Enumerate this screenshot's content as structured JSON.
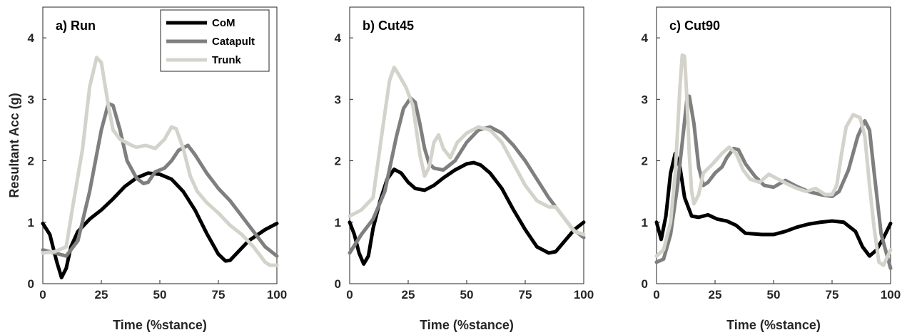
{
  "figure": {
    "ylabel": "Resultant Acc (g)",
    "xlabel": "Time (%stance)"
  },
  "legend": {
    "placement": "top-right of panel a",
    "entries": [
      {
        "label": "CoM",
        "color": "#000000"
      },
      {
        "label": "Catapult",
        "color": "#7f7f7f"
      },
      {
        "label": "Trunk",
        "color": "#d4d3cb"
      }
    ]
  },
  "chart_data": [
    {
      "type": "line",
      "title": "a) Run",
      "xlabel": "Time (%stance)",
      "ylabel": "Resultant Acc (g)",
      "xlim": [
        0,
        100
      ],
      "ylim": [
        0,
        4.5
      ],
      "xticks": [
        0,
        25,
        50,
        75,
        100
      ],
      "yticks": [
        0,
        1,
        2,
        3,
        4
      ],
      "grid": false,
      "series": [
        {
          "name": "CoM",
          "color": "#000000",
          "x": [
            0,
            3,
            6,
            8,
            10,
            12,
            15,
            20,
            25,
            30,
            35,
            40,
            45,
            50,
            55,
            60,
            65,
            70,
            75,
            78,
            80,
            83,
            88,
            95,
            100
          ],
          "y": [
            0.98,
            0.8,
            0.35,
            0.1,
            0.25,
            0.6,
            0.85,
            1.05,
            1.2,
            1.38,
            1.58,
            1.72,
            1.8,
            1.78,
            1.7,
            1.5,
            1.2,
            0.82,
            0.48,
            0.37,
            0.38,
            0.5,
            0.7,
            0.88,
            0.98
          ]
        },
        {
          "name": "Catapult",
          "color": "#7f7f7f",
          "x": [
            0,
            5,
            10,
            15,
            20,
            25,
            28,
            30,
            33,
            36,
            40,
            43,
            45,
            48,
            52,
            55,
            58,
            62,
            65,
            70,
            75,
            80,
            85,
            90,
            95,
            100
          ],
          "y": [
            0.55,
            0.5,
            0.45,
            0.7,
            1.5,
            2.5,
            2.93,
            2.9,
            2.5,
            2.0,
            1.72,
            1.63,
            1.65,
            1.82,
            1.88,
            2.0,
            2.17,
            2.25,
            2.1,
            1.8,
            1.55,
            1.35,
            1.1,
            0.85,
            0.6,
            0.45
          ]
        },
        {
          "name": "Trunk",
          "color": "#d4d3cb",
          "x": [
            0,
            5,
            10,
            13,
            17,
            20,
            23,
            25,
            28,
            30,
            33,
            38,
            40,
            44,
            48,
            52,
            55,
            57,
            60,
            63,
            66,
            70,
            75,
            80,
            85,
            90,
            95,
            97,
            100
          ],
          "y": [
            0.5,
            0.52,
            0.6,
            1.3,
            2.2,
            3.2,
            3.68,
            3.6,
            2.9,
            2.5,
            2.35,
            2.25,
            2.22,
            2.25,
            2.2,
            2.35,
            2.55,
            2.52,
            2.2,
            1.75,
            1.5,
            1.32,
            1.15,
            0.95,
            0.8,
            0.6,
            0.35,
            0.3,
            0.3
          ]
        }
      ]
    },
    {
      "type": "line",
      "title": "b) Cut45",
      "xlabel": "Time (%stance)",
      "xlim": [
        0,
        100
      ],
      "ylim": [
        0,
        4.5
      ],
      "xticks": [
        0,
        25,
        50,
        75,
        100
      ],
      "yticks": [
        0,
        1,
        2,
        3,
        4
      ],
      "grid": false,
      "series": [
        {
          "name": "CoM",
          "color": "#000000",
          "x": [
            0,
            2,
            4,
            6,
            8,
            10,
            13,
            16,
            19,
            22,
            25,
            28,
            32,
            36,
            40,
            45,
            50,
            53,
            56,
            60,
            65,
            70,
            75,
            80,
            85,
            88,
            92,
            96,
            100
          ],
          "y": [
            1.0,
            0.8,
            0.5,
            0.32,
            0.45,
            0.9,
            1.35,
            1.7,
            1.86,
            1.8,
            1.65,
            1.55,
            1.52,
            1.6,
            1.72,
            1.85,
            1.95,
            1.97,
            1.93,
            1.8,
            1.55,
            1.2,
            0.88,
            0.6,
            0.5,
            0.52,
            0.7,
            0.88,
            1.0
          ]
        },
        {
          "name": "Catapult",
          "color": "#7f7f7f",
          "x": [
            0,
            5,
            10,
            15,
            20,
            23,
            26,
            28,
            30,
            32,
            34,
            36,
            40,
            45,
            50,
            55,
            60,
            65,
            70,
            75,
            80,
            85,
            90,
            95,
            100
          ],
          "y": [
            0.5,
            0.8,
            1.05,
            1.5,
            2.4,
            2.85,
            3.02,
            2.95,
            2.6,
            2.2,
            1.95,
            1.88,
            1.85,
            2.0,
            2.3,
            2.5,
            2.55,
            2.45,
            2.25,
            2.0,
            1.7,
            1.4,
            1.15,
            0.9,
            0.75
          ]
        },
        {
          "name": "Trunk",
          "color": "#d4d3cb",
          "x": [
            0,
            5,
            10,
            14,
            17,
            19,
            21,
            24,
            27,
            30,
            32,
            34,
            36,
            38,
            40,
            43,
            46,
            50,
            55,
            60,
            65,
            70,
            75,
            80,
            85,
            88,
            92,
            96,
            100
          ],
          "y": [
            1.1,
            1.2,
            1.4,
            2.5,
            3.3,
            3.52,
            3.4,
            3.2,
            2.9,
            2.1,
            1.75,
            1.9,
            2.3,
            2.42,
            2.2,
            2.05,
            2.3,
            2.45,
            2.55,
            2.5,
            2.3,
            1.95,
            1.6,
            1.35,
            1.25,
            1.25,
            1.05,
            0.85,
            0.8
          ]
        }
      ]
    },
    {
      "type": "line",
      "title": "c) Cut90",
      "xlabel": "Time (%stance)",
      "xlim": [
        0,
        100
      ],
      "ylim": [
        0,
        4.5
      ],
      "xticks": [
        0,
        25,
        50,
        75,
        100
      ],
      "yticks": [
        0,
        1,
        2,
        3,
        4
      ],
      "grid": false,
      "series": [
        {
          "name": "CoM",
          "color": "#000000",
          "x": [
            0,
            2,
            4,
            6,
            8,
            10,
            12,
            15,
            18,
            22,
            26,
            30,
            34,
            38,
            45,
            50,
            55,
            60,
            65,
            70,
            75,
            80,
            85,
            88,
            91,
            94,
            97,
            100
          ],
          "y": [
            1.0,
            0.72,
            1.1,
            1.8,
            2.12,
            1.9,
            1.4,
            1.1,
            1.08,
            1.12,
            1.05,
            1.02,
            0.95,
            0.82,
            0.8,
            0.8,
            0.85,
            0.92,
            0.97,
            1.0,
            1.02,
            1.0,
            0.85,
            0.6,
            0.45,
            0.55,
            0.75,
            0.98
          ]
        },
        {
          "name": "Catapult",
          "color": "#7f7f7f",
          "x": [
            0,
            3,
            6,
            9,
            11,
            13,
            14,
            16,
            18,
            20,
            22,
            25,
            28,
            30,
            33,
            35,
            38,
            42,
            46,
            50,
            55,
            60,
            65,
            70,
            75,
            78,
            82,
            86,
            89,
            91,
            93,
            96,
            100
          ],
          "y": [
            0.35,
            0.4,
            0.8,
            1.6,
            2.3,
            3.0,
            3.05,
            2.6,
            1.9,
            1.6,
            1.65,
            1.8,
            1.9,
            2.05,
            2.2,
            2.18,
            1.95,
            1.75,
            1.6,
            1.57,
            1.68,
            1.58,
            1.5,
            1.45,
            1.42,
            1.5,
            1.85,
            2.4,
            2.65,
            2.5,
            1.8,
            0.8,
            0.25
          ]
        },
        {
          "name": "Trunk",
          "color": "#d4d3cb",
          "x": [
            0,
            3,
            6,
            8,
            10,
            11,
            12,
            13,
            14,
            15,
            16,
            18,
            20,
            24,
            28,
            31,
            34,
            37,
            40,
            44,
            48,
            52,
            56,
            60,
            64,
            68,
            72,
            75,
            77,
            79,
            81,
            84,
            87,
            89,
            91,
            93,
            95,
            97,
            100
          ],
          "y": [
            0.45,
            0.55,
            1.0,
            1.8,
            3.2,
            3.72,
            3.7,
            3.0,
            2.1,
            1.5,
            1.3,
            1.45,
            1.8,
            1.95,
            2.12,
            2.22,
            2.12,
            1.85,
            1.7,
            1.65,
            1.78,
            1.7,
            1.62,
            1.55,
            1.5,
            1.55,
            1.45,
            1.45,
            1.6,
            2.1,
            2.55,
            2.75,
            2.7,
            2.4,
            1.6,
            0.9,
            0.35,
            0.3,
            0.55
          ]
        }
      ]
    }
  ]
}
